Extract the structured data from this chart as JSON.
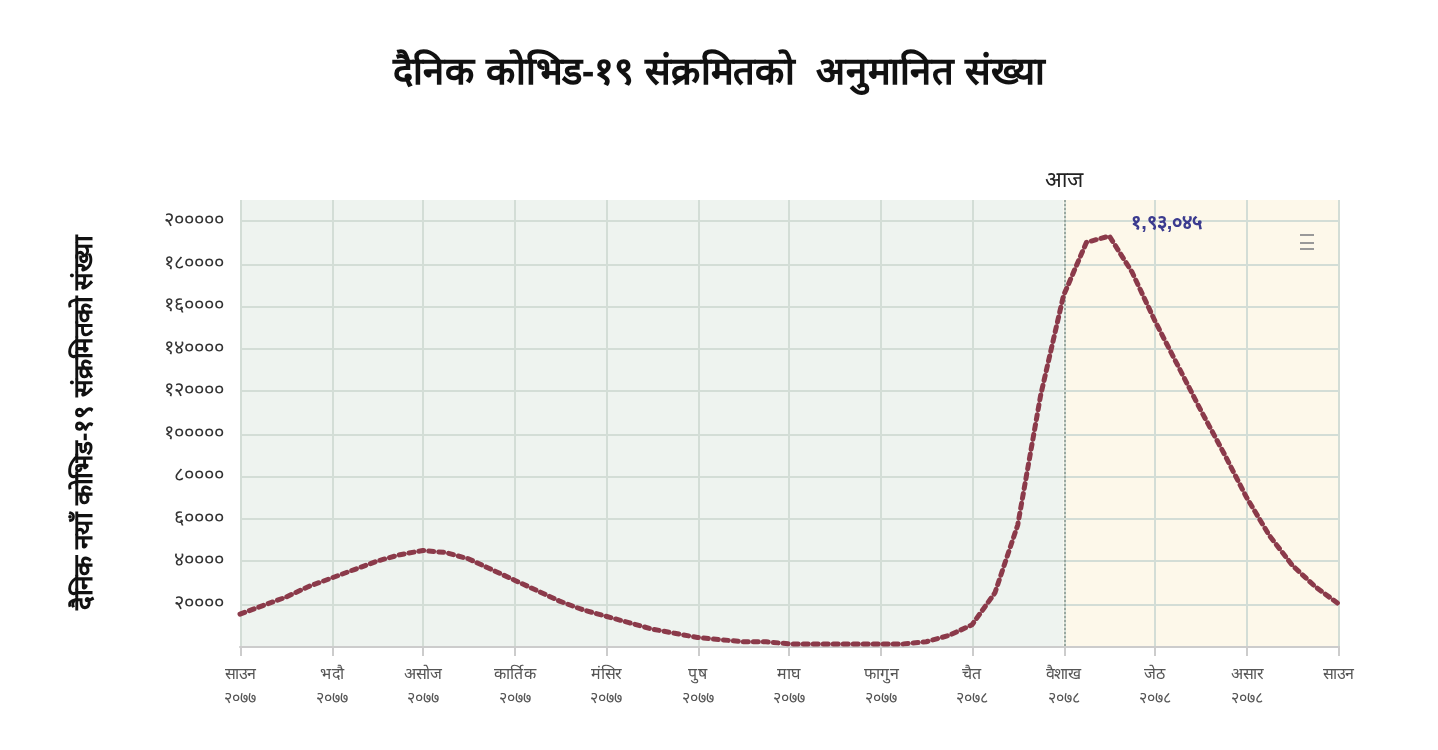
{
  "chart_data": {
    "type": "line",
    "title": "दैनिक कोभिड-१९ संक्रमितको  अनुमानित संख्या",
    "ylabel": "दैनिक नयाँ कोभिड-१९ संक्रमितको संख्या",
    "categories": [
      "साउन\n२०७७",
      null,
      null,
      null,
      "भदौ\n२०७७",
      null,
      null,
      null,
      "असोज\n२०७७",
      null,
      null,
      null,
      "कार्तिक\n२०७७",
      null,
      null,
      null,
      "मंसिर\n२०७७",
      null,
      null,
      null,
      "पुष\n२०७७",
      null,
      null,
      null,
      "माघ\n२०७७",
      null,
      null,
      null,
      "फागुन\n२०७७",
      null,
      null,
      null,
      "चैत\n२०७८",
      null,
      null,
      null,
      "वैशाख\n२०७८",
      null,
      null,
      null,
      "जेठ\n२०७८",
      null,
      null,
      null,
      "असार\n२०७८",
      null,
      null,
      null,
      "साउन"
    ],
    "series": [
      {
        "color": "#8b3a4a",
        "values": [
          15000,
          19000,
          23000,
          28000,
          32000,
          36000,
          40000,
          43000,
          45000,
          44000,
          41000,
          36000,
          31000,
          26000,
          21000,
          17000,
          14000,
          11000,
          8000,
          6000,
          4000,
          3000,
          2000,
          2000,
          1000,
          1000,
          1000,
          1000,
          1000,
          1000,
          2000,
          5000,
          10000,
          25000,
          57000,
          118000,
          165000,
          190000,
          193045,
          176000,
          153000,
          132000,
          111000,
          91000,
          70000,
          52000,
          38000,
          28000,
          20000
        ],
        "value_labels": [
          null,
          null,
          null,
          null,
          null,
          null,
          null,
          null,
          null,
          null,
          null,
          null,
          null,
          null,
          null,
          null,
          null,
          null,
          null,
          null,
          null,
          null,
          null,
          null,
          null,
          null,
          null,
          null,
          null,
          null,
          null,
          null,
          null,
          null,
          null,
          null,
          null,
          null,
          "१,९३,०४५",
          null,
          null,
          null,
          null,
          null,
          null,
          null,
          null,
          null,
          null
        ]
      }
    ],
    "ylim": [
      0,
      210000
    ],
    "yticks": [
      {
        "value": 0,
        "label": null
      },
      {
        "value": 20000,
        "label": "२००००"
      },
      {
        "value": 40000,
        "label": "४००००"
      },
      {
        "value": 60000,
        "label": "६००००"
      },
      {
        "value": 80000,
        "label": "८००००"
      },
      {
        "value": 100000,
        "label": "१०००००"
      },
      {
        "value": 120000,
        "label": "१२००००"
      },
      {
        "value": 140000,
        "label": "१४००००"
      },
      {
        "value": 160000,
        "label": "१६००००"
      },
      {
        "value": 180000,
        "label": "१८००००"
      },
      {
        "value": 200000,
        "label": "२०००००"
      }
    ],
    "ref_lines": [
      {
        "axis": "x",
        "value": "वैशाख\n२०७८",
        "label": "आज",
        "color": "#9aa8a0",
        "line_style": "dotted"
      }
    ],
    "bands": [
      {
        "axis": "x",
        "from": "साउन\n२०७७",
        "to": "वैशाख\n२०७८",
        "color": "#eef3ef"
      },
      {
        "axis": "x",
        "from": "वैशाख\n२०७८",
        "to": "साउन",
        "color": "#fdf8ea"
      }
    ],
    "grid": true,
    "marker": "none",
    "line_style": "dotted"
  }
}
